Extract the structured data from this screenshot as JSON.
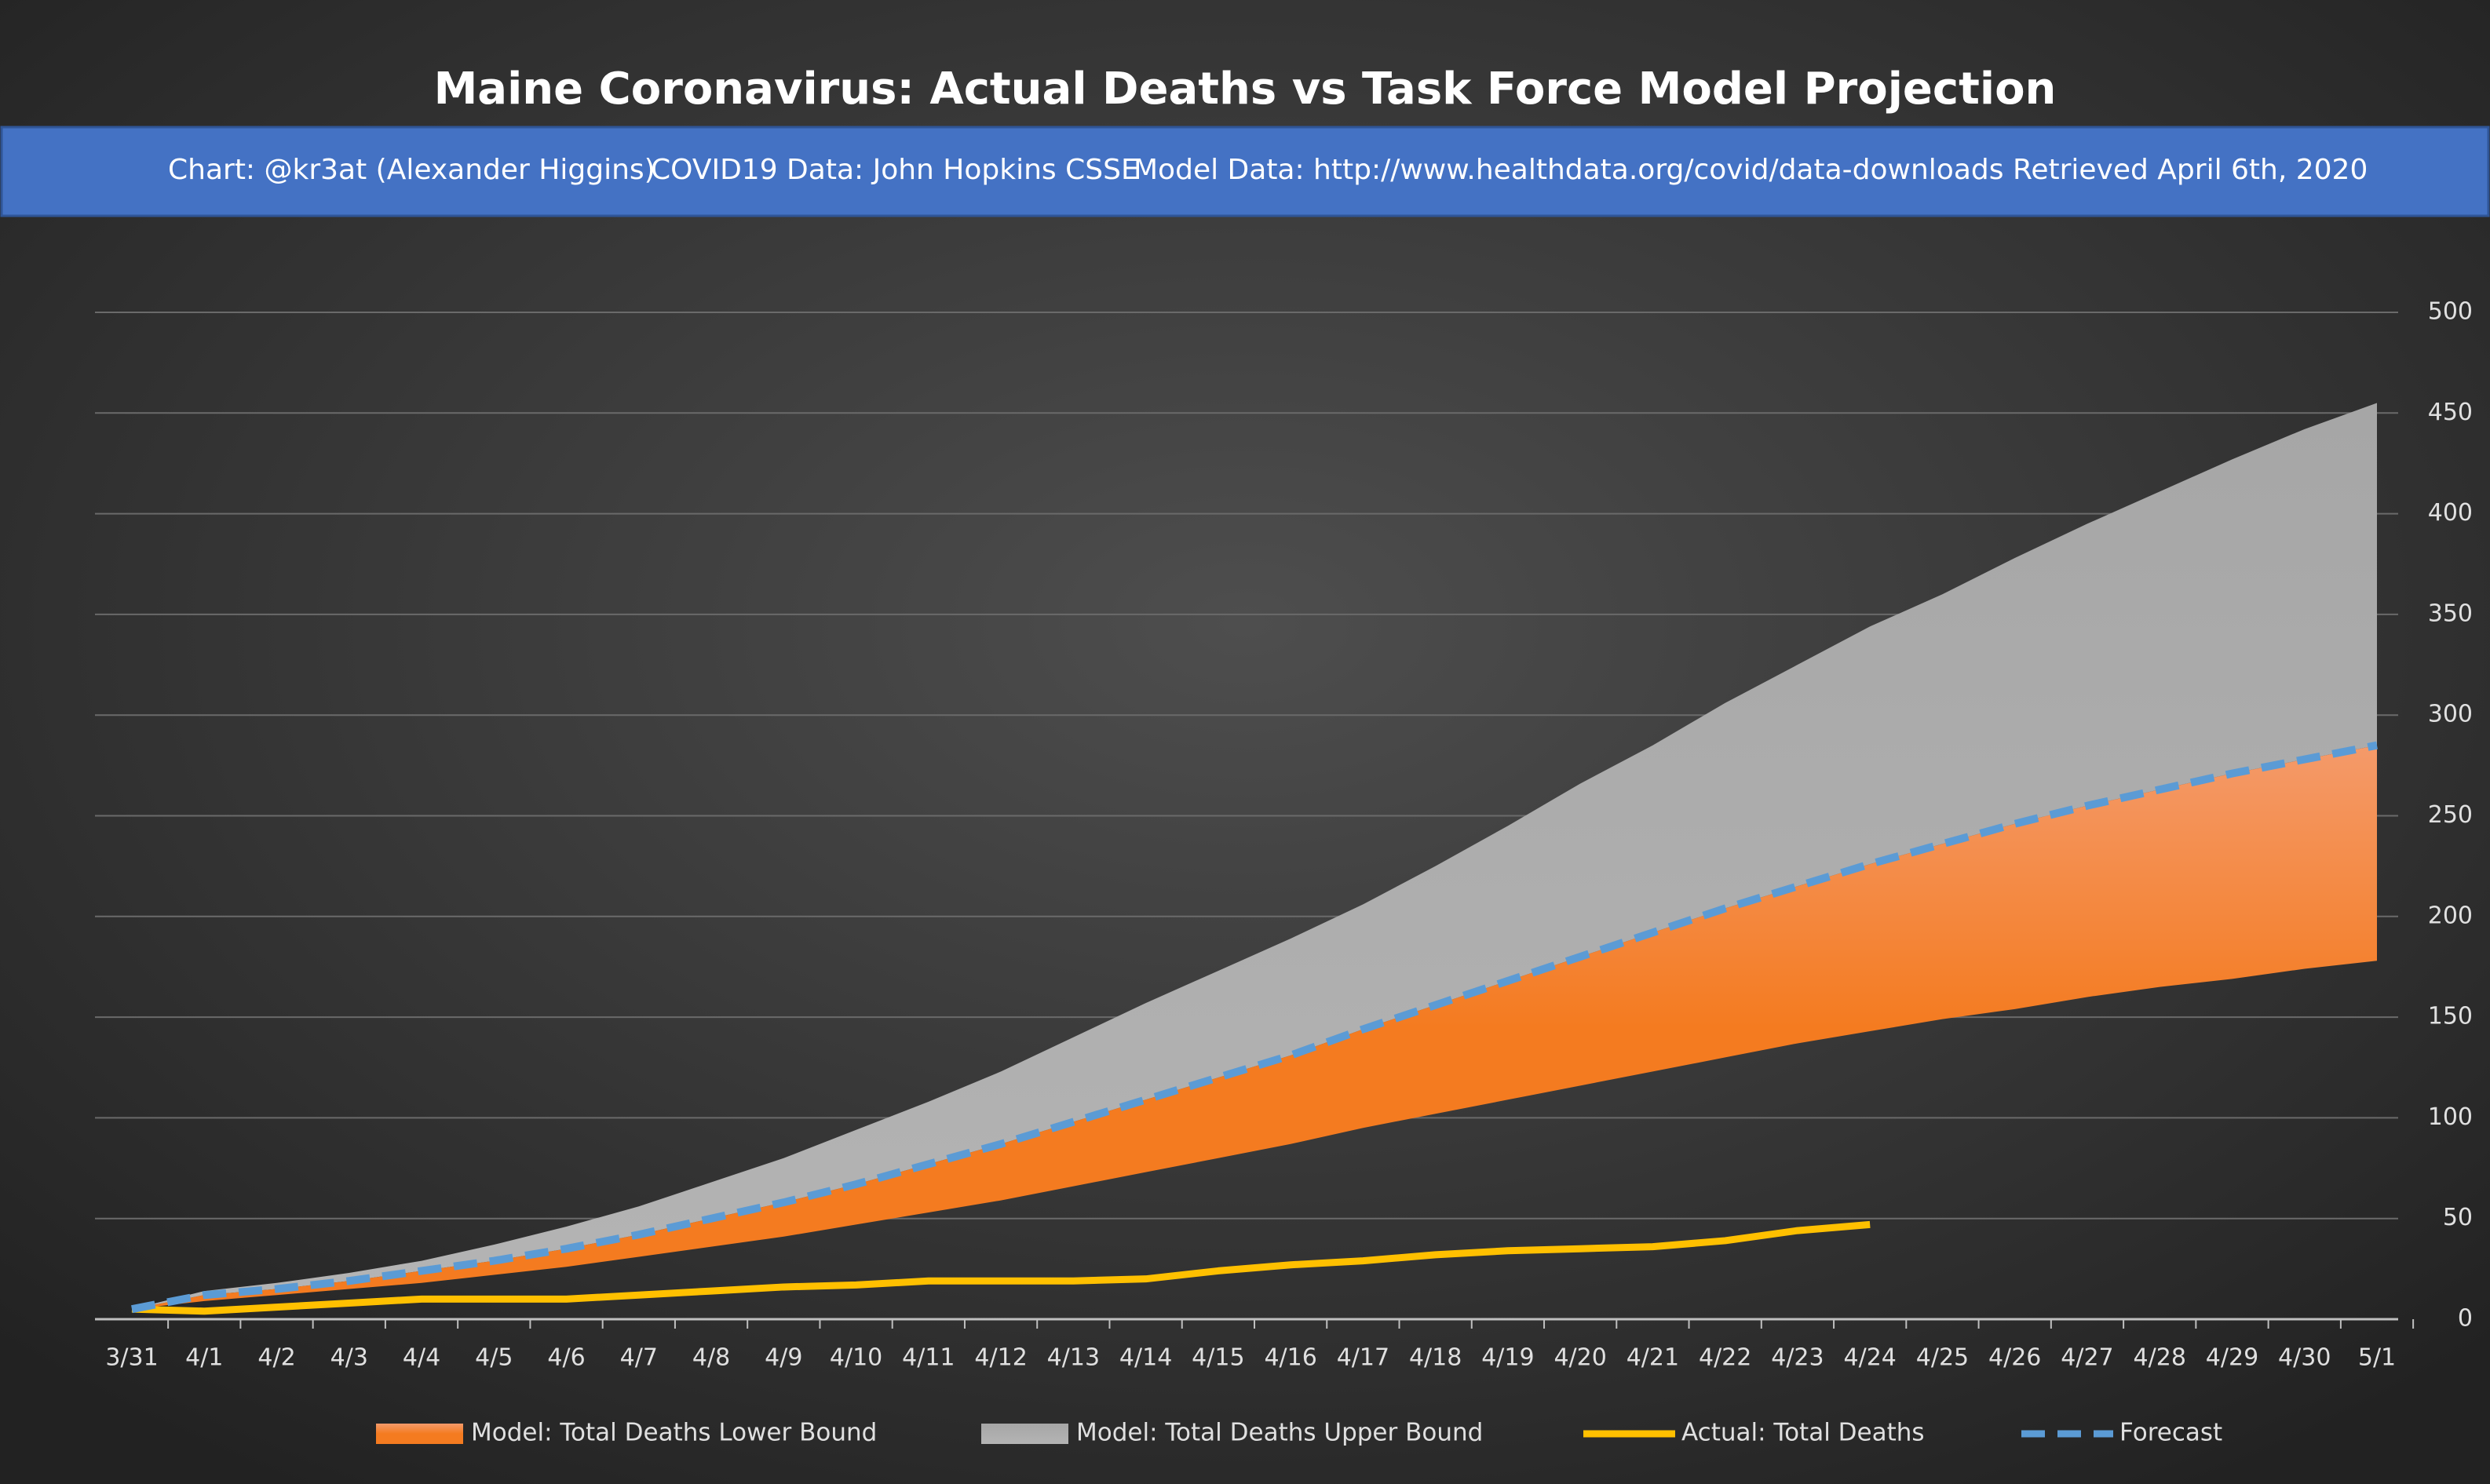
{
  "chart_data": {
    "type": "line",
    "title": "Maine Coronavirus: Actual Deaths vs Task Force Model Projection",
    "subtitle": [
      "Chart: @kr3at (Alexander Higgins)",
      "COVID19 Data: John Hopkins CSSE",
      "Model Data: http://www.healthdata.org/covid/data-downloads Retrieved April 6th, 2020"
    ],
    "categories": [
      "3/31",
      "4/1",
      "4/2",
      "4/3",
      "4/4",
      "4/5",
      "4/6",
      "4/7",
      "4/8",
      "4/9",
      "4/10",
      "4/11",
      "4/12",
      "4/13",
      "4/14",
      "4/15",
      "4/16",
      "4/17",
      "4/18",
      "4/19",
      "4/20",
      "4/21",
      "4/22",
      "4/23",
      "4/24",
      "4/25",
      "4/26",
      "4/27",
      "4/28",
      "4/29",
      "4/30",
      "5/1"
    ],
    "series": [
      {
        "name": "Model: Total Deaths Lower Bound",
        "color": "#f47b20",
        "values": [
          5,
          9,
          12,
          15,
          18,
          22,
          26,
          31,
          36,
          41,
          47,
          53,
          59,
          66,
          73,
          80,
          87,
          95,
          102,
          109,
          116,
          123,
          130,
          137,
          143,
          149,
          154,
          160,
          165,
          169,
          174,
          178
        ]
      },
      {
        "name": "Model: Total Deaths Upper Bound",
        "color": "#a6a6a6",
        "values": [
          5,
          14,
          18,
          23,
          29,
          37,
          46,
          56,
          68,
          80,
          94,
          108,
          123,
          140,
          157,
          173,
          189,
          206,
          225,
          245,
          266,
          285,
          306,
          325,
          344,
          360,
          378,
          395,
          411,
          427,
          442,
          455
        ]
      },
      {
        "name": "Actual: Total Deaths",
        "color": "#ffc000",
        "values": [
          5,
          4,
          6,
          8,
          10,
          10,
          10,
          12,
          14,
          16,
          17,
          19,
          19,
          19,
          20,
          24,
          27,
          29,
          32,
          34,
          35,
          36,
          39,
          44,
          47,
          null,
          null,
          null,
          null,
          null,
          null,
          null
        ]
      },
      {
        "name": "Forecast",
        "color": "#5b9bd5",
        "values": [
          5,
          12,
          15,
          19,
          24,
          29,
          35,
          42,
          50,
          58,
          67,
          77,
          87,
          98,
          109,
          120,
          131,
          144,
          156,
          168,
          180,
          192,
          204,
          215,
          226,
          236,
          246,
          255,
          263,
          271,
          278,
          285
        ]
      }
    ],
    "ylim": [
      0,
      500
    ],
    "yticks": [
      0,
      50,
      100,
      150,
      200,
      250,
      300,
      350,
      400,
      450,
      500
    ],
    "grid": true
  }
}
